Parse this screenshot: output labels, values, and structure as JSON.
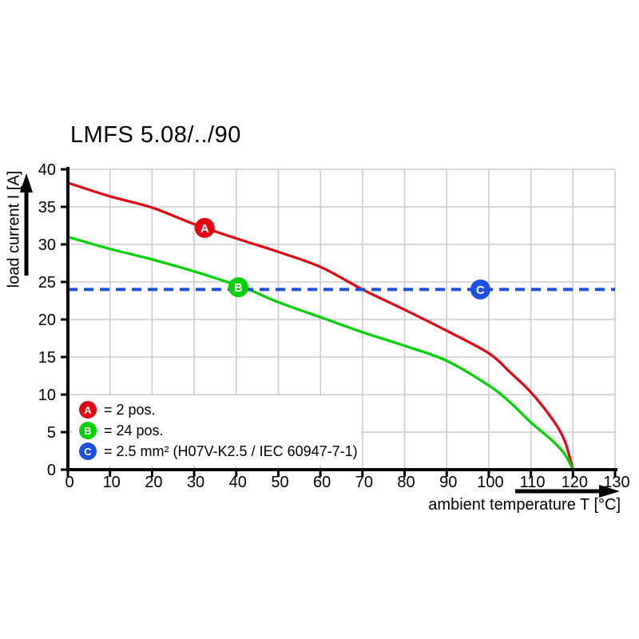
{
  "title": "LMFS 5.08/../90",
  "colors": {
    "red": "#e30613",
    "green": "#00d300",
    "blue": "#1b51dc",
    "grid": "#cccccc",
    "axis": "#000000",
    "background": "#ffffff"
  },
  "chart_data": {
    "type": "line",
    "title": "LMFS 5.08/../90",
    "xlabel": "ambient temperature T [°C]",
    "ylabel": "load current I [A]",
    "xlim": [
      0,
      130
    ],
    "ylim": [
      0,
      40
    ],
    "x_ticks": [
      0,
      10,
      20,
      30,
      40,
      50,
      60,
      70,
      80,
      90,
      100,
      110,
      120,
      130
    ],
    "y_ticks": [
      0,
      5,
      10,
      15,
      20,
      25,
      30,
      35,
      40
    ],
    "grid": true,
    "legend_position": "lower-left-inside",
    "series": [
      {
        "id": "A",
        "legend_label": "= 2 pos.",
        "color": "#e30613",
        "style": "solid",
        "points": [
          [
            0,
            38.2
          ],
          [
            10,
            36.4
          ],
          [
            20,
            34.9
          ],
          [
            30,
            32.7
          ],
          [
            40,
            30.8
          ],
          [
            50,
            29.0
          ],
          [
            60,
            27.0
          ],
          [
            70,
            24.0
          ],
          [
            80,
            21.3
          ],
          [
            90,
            18.5
          ],
          [
            100,
            15.5
          ],
          [
            105,
            13.0
          ],
          [
            110,
            10.3
          ],
          [
            115,
            6.8
          ],
          [
            118,
            3.9
          ],
          [
            120,
            0
          ]
        ],
        "marker": {
          "letter": "A",
          "x": 32.5,
          "y": 32.2
        }
      },
      {
        "id": "B",
        "legend_label": "= 24 pos.",
        "color": "#00d300",
        "style": "solid",
        "points": [
          [
            0,
            31.0
          ],
          [
            10,
            29.4
          ],
          [
            20,
            28.0
          ],
          [
            30,
            26.4
          ],
          [
            40,
            24.6
          ],
          [
            43,
            24.0
          ],
          [
            50,
            22.3
          ],
          [
            60,
            20.3
          ],
          [
            70,
            18.3
          ],
          [
            80,
            16.5
          ],
          [
            90,
            14.5
          ],
          [
            100,
            11.2
          ],
          [
            105,
            9.0
          ],
          [
            110,
            6.3
          ],
          [
            115,
            3.9
          ],
          [
            118,
            2.1
          ],
          [
            120,
            0
          ]
        ],
        "marker": {
          "letter": "B",
          "x": 40.5,
          "y": 24.3
        }
      },
      {
        "id": "C",
        "legend_label": "= 2.5 mm² (H07V-K2.5 / IEC 60947-7-1)",
        "color": "#1b51dc",
        "style": "dashed",
        "points": [
          [
            0,
            24
          ],
          [
            130,
            24
          ]
        ],
        "marker": {
          "letter": "C",
          "x": 98,
          "y": 24
        }
      }
    ]
  }
}
